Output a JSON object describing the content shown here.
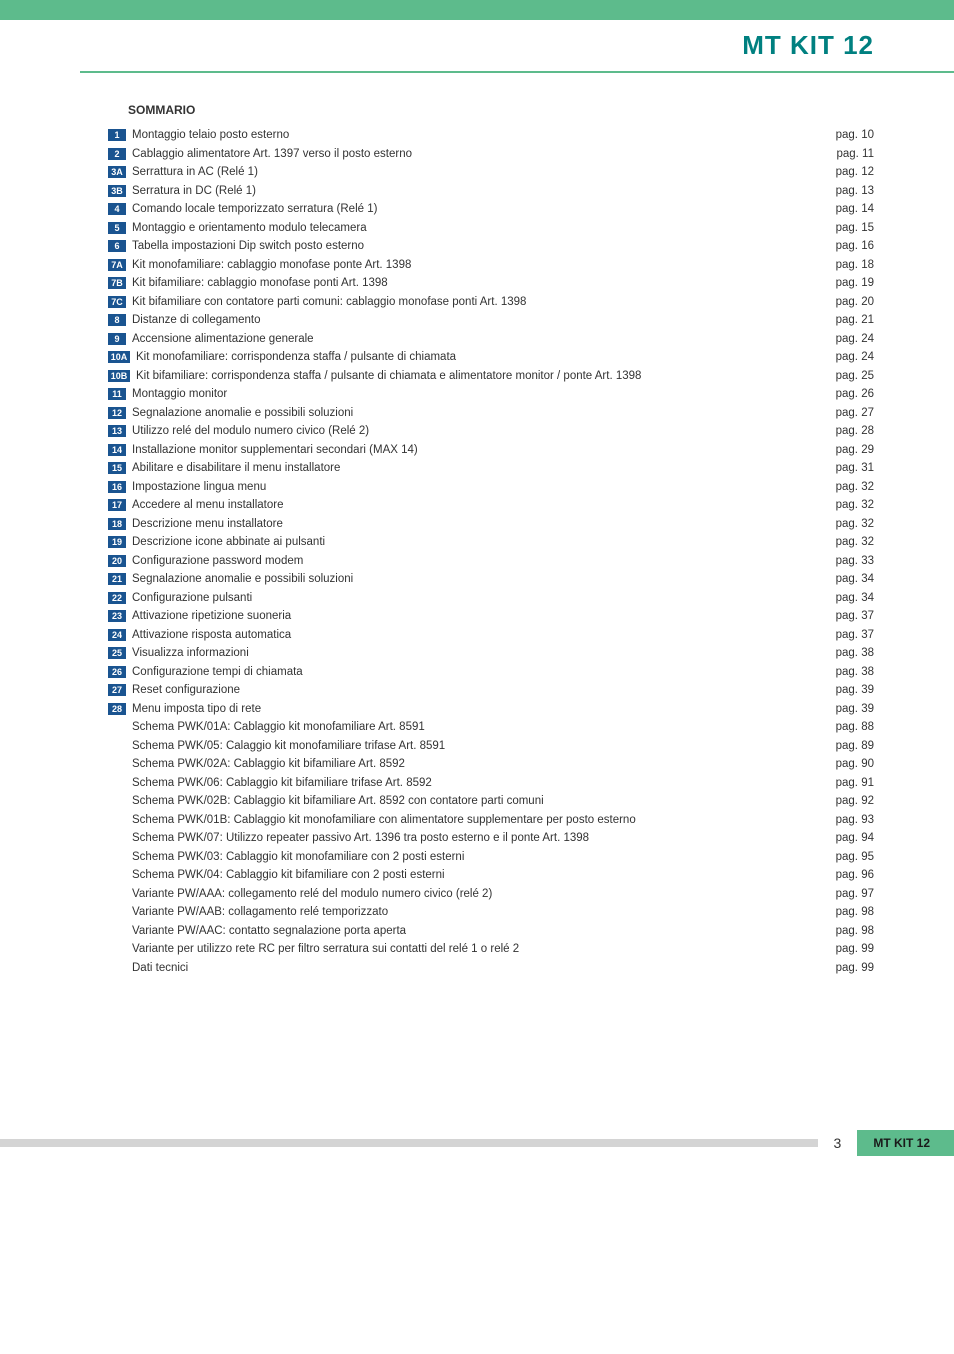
{
  "header": {
    "title": "MT KIT 12",
    "title_color": "#008080"
  },
  "sommario_label": "SOMMARIO",
  "toc": [
    {
      "tag": "1",
      "text": "Montaggio telaio posto esterno",
      "page": "pag. 10"
    },
    {
      "tag": "2",
      "text": "Cablaggio alimentatore Art. 1397 verso il posto esterno",
      "page": "pag. 11"
    },
    {
      "tag": "3A",
      "text": "Serrattura in AC (Relé 1)",
      "page": "pag. 12"
    },
    {
      "tag": "3B",
      "text": "Serratura in DC (Relé 1)",
      "page": "pag. 13"
    },
    {
      "tag": "4",
      "text": "Comando locale temporizzato serratura (Relé 1)",
      "page": "pag. 14"
    },
    {
      "tag": "5",
      "text": "Montaggio e orientamento modulo telecamera",
      "page": "pag. 15"
    },
    {
      "tag": "6",
      "text": "Tabella impostazioni Dip switch posto esterno",
      "page": "pag. 16"
    },
    {
      "tag": "7A",
      "text": "Kit monofamiliare: cablaggio monofase ponte Art. 1398",
      "page": "pag. 18"
    },
    {
      "tag": "7B",
      "text": "Kit bifamiliare: cablaggio monofase ponti Art. 1398",
      "page": "pag. 19"
    },
    {
      "tag": "7C",
      "text": "Kit bifamiliare con contatore parti comuni: cablaggio monofase ponti Art. 1398",
      "page": "pag. 20"
    },
    {
      "tag": "8",
      "text": "Distanze di collegamento",
      "page": "pag. 21"
    },
    {
      "tag": "9",
      "text": "Accensione alimentazione generale",
      "page": "pag. 24"
    },
    {
      "tag": "10A",
      "text": "Kit monofamiliare: corrispondenza staffa / pulsante di chiamata",
      "page": "pag. 24"
    },
    {
      "tag": "10B",
      "text": "Kit bifamiliare: corrispondenza staffa / pulsante di chiamata e alimentatore monitor / ponte Art. 1398",
      "page": "pag. 25"
    },
    {
      "tag": "11",
      "text": "Montaggio monitor",
      "page": "pag. 26"
    },
    {
      "tag": "12",
      "text": "Segnalazione anomalie e possibili soluzioni",
      "page": "pag. 27"
    },
    {
      "tag": "13",
      "text": "Utilizzo relé del modulo numero civico (Relé 2)",
      "page": "pag. 28"
    },
    {
      "tag": "14",
      "text": "Installazione monitor supplementari secondari (MAX 14)",
      "page": "pag. 29"
    },
    {
      "tag": "15",
      "text": "Abilitare e disabilitare il menu installatore",
      "page": "pag. 31"
    },
    {
      "tag": "16",
      "text": "Impostazione lingua menu",
      "page": "pag. 32"
    },
    {
      "tag": "17",
      "text": "Accedere al menu installatore",
      "page": "pag. 32"
    },
    {
      "tag": "18",
      "text": "Descrizione menu installatore",
      "page": "pag. 32"
    },
    {
      "tag": "19",
      "text": "Descrizione icone abbinate ai pulsanti",
      "page": "pag. 32"
    },
    {
      "tag": "20",
      "text": "Configurazione password modem",
      "page": "pag. 33"
    },
    {
      "tag": "21",
      "text": "Segnalazione anomalie e possibili soluzioni",
      "page": "pag. 34"
    },
    {
      "tag": "22",
      "text": "Configurazione pulsanti",
      "page": "pag. 34"
    },
    {
      "tag": "23",
      "text": "Attivazione ripetizione suoneria",
      "page": "pag. 37"
    },
    {
      "tag": "24",
      "text": "Attivazione risposta automatica",
      "page": "pag. 37"
    },
    {
      "tag": "25",
      "text": "Visualizza informazioni",
      "page": "pag. 38"
    },
    {
      "tag": "26",
      "text": "Configurazione tempi di chiamata",
      "page": "pag. 38"
    },
    {
      "tag": "27",
      "text": "Reset configurazione",
      "page": "pag. 39"
    },
    {
      "tag": "28",
      "text": "Menu imposta tipo di rete",
      "page": "pag. 39"
    },
    {
      "tag": "",
      "text": "Schema PWK/01A: Cablaggio kit monofamiliare Art. 8591",
      "page": "pag. 88"
    },
    {
      "tag": "",
      "text": "Schema PWK/05: Calaggio kit monofamiliare trifase Art. 8591",
      "page": "pag. 89"
    },
    {
      "tag": "",
      "text": "Schema PWK/02A: Cablaggio kit bifamiliare Art. 8592",
      "page": "pag. 90"
    },
    {
      "tag": "",
      "text": "Schema PWK/06: Cablaggio kit bifamiliare trifase Art. 8592",
      "page": "pag. 91"
    },
    {
      "tag": "",
      "text": "Schema PWK/02B: Cablaggio kit bifamiliare Art. 8592 con contatore parti comuni",
      "page": "pag. 92"
    },
    {
      "tag": "",
      "text": "Schema PWK/01B: Cablaggio kit monofamiliare con alimentatore supplementare per posto esterno",
      "page": "pag. 93"
    },
    {
      "tag": "",
      "text": "Schema PWK/07: Utilizzo repeater passivo Art. 1396 tra posto esterno e il ponte Art. 1398",
      "page": "pag. 94"
    },
    {
      "tag": "",
      "text": "Schema PWK/03: Cablaggio kit monofamiliare con 2 posti esterni",
      "page": "pag. 95"
    },
    {
      "tag": "",
      "text": "Schema PWK/04: Cablaggio kit bifamiliare con 2 posti esterni",
      "page": "pag. 96"
    },
    {
      "tag": "",
      "text": "Variante PW/AAA: collegamento relé del modulo numero civico (relé 2)",
      "page": "pag. 97"
    },
    {
      "tag": "",
      "text": "Variante PW/AAB: collagamento relé temporizzato",
      "page": "pag. 98"
    },
    {
      "tag": "",
      "text": "Variante PW/AAC: contatto segnalazione porta aperta",
      "page": "pag. 98"
    },
    {
      "tag": "",
      "text": "Variante per utilizzo rete RC per filtro serratura sui contatti del relé 1 o relé 2",
      "page": "pag. 99"
    },
    {
      "tag": "",
      "text": "Dati tecnici",
      "page": "pag. 99"
    }
  ],
  "footer": {
    "page_number": "3",
    "label": "MT KIT 12"
  },
  "colors": {
    "accent_green": "#5dbb8c",
    "tag_blue": "#1a5490",
    "title_teal": "#008080",
    "gray_bar": "#d4d4d4",
    "text": "#333333"
  }
}
